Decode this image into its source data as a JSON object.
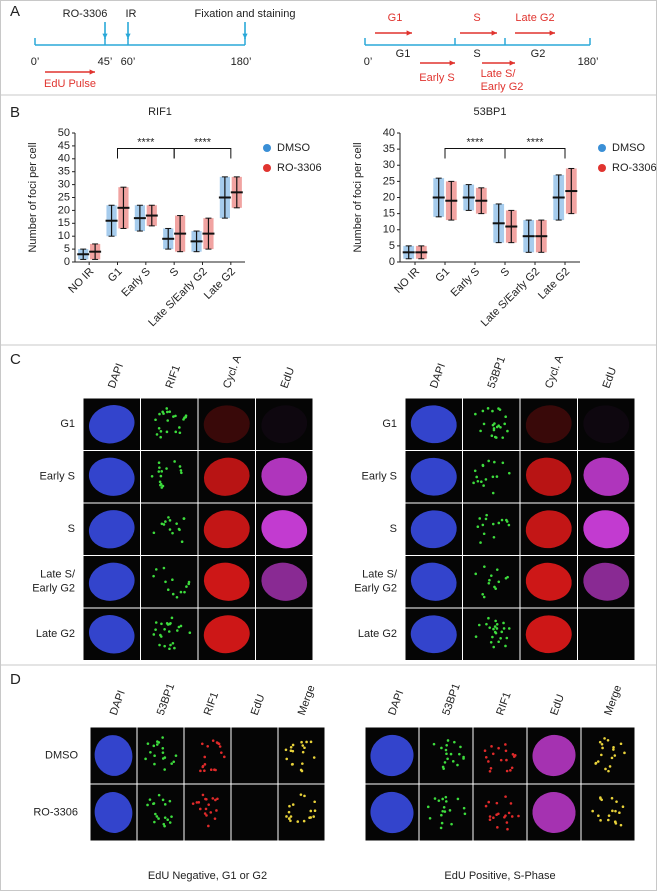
{
  "panel_labels": [
    "A",
    "B",
    "C",
    "D"
  ],
  "panel_a": {
    "timeline": {
      "events": [
        "RO-3306",
        "IR",
        "Fixation and staining"
      ],
      "times": [
        "0’",
        "45’",
        "60’",
        "180’"
      ],
      "pulse": "EdU Pulse"
    },
    "phases": {
      "top": [
        "G1",
        "S",
        "Late G2"
      ],
      "line": [
        "G1",
        "S",
        "G2"
      ],
      "times": [
        "0’",
        "180’"
      ],
      "bottom": [
        [
          "Early S"
        ],
        [
          "Late S/",
          "Early G2"
        ]
      ]
    }
  },
  "chart_data": [
    {
      "type": "errorbar",
      "title": "RIF1",
      "y_label": "Number of foci per cell",
      "categories": [
        "NO IR",
        "G1",
        "Early S",
        "S",
        "Late S/Early G2",
        "Late G2"
      ],
      "ylim": [
        0,
        50
      ],
      "yticks": [
        0,
        5,
        10,
        15,
        20,
        25,
        30,
        35,
        40,
        45,
        50
      ],
      "annotations": [
        "****",
        "****"
      ],
      "series": [
        {
          "name": "DMSO",
          "color": "#3a8fd6",
          "values": [
            3,
            16,
            17,
            9,
            8,
            25
          ],
          "sd": [
            2,
            6,
            5,
            4,
            4,
            8
          ]
        },
        {
          "name": "RO-3306",
          "color": "#e0342f",
          "values": [
            4,
            21,
            18,
            11,
            11,
            27
          ],
          "sd": [
            3,
            8,
            4,
            7,
            6,
            6
          ]
        }
      ]
    },
    {
      "type": "errorbar",
      "title": "53BP1",
      "y_label": "Number of foci per cell",
      "categories": [
        "NO IR",
        "G1",
        "Early S",
        "S",
        "Late S/Early G2",
        "Late G2"
      ],
      "ylim": [
        0,
        40
      ],
      "yticks": [
        0,
        5,
        10,
        15,
        20,
        25,
        30,
        35,
        40
      ],
      "annotations": [
        "****",
        "****"
      ],
      "series": [
        {
          "name": "DMSO",
          "color": "#3a8fd6",
          "values": [
            3,
            20,
            20,
            12,
            8,
            20
          ],
          "sd": [
            2,
            6,
            4,
            6,
            5,
            7
          ]
        },
        {
          "name": "RO-3306",
          "color": "#e0342f",
          "values": [
            3,
            19,
            19,
            11,
            8,
            22
          ],
          "sd": [
            2,
            6,
            4,
            5,
            5,
            7
          ]
        }
      ]
    }
  ],
  "panel_c": {
    "left": {
      "columns": [
        "DAPI",
        "RIF1",
        "Cycl. A",
        "EdU"
      ],
      "rows": [
        [
          "G1"
        ],
        [
          "Early S"
        ],
        [
          "S"
        ],
        [
          "Late S/",
          "Early G2"
        ],
        [
          "Late G2"
        ]
      ]
    },
    "right": {
      "columns": [
        "DAPI",
        "53BP1",
        "Cycl. A",
        "EdU"
      ],
      "rows": [
        [
          "G1"
        ],
        [
          "Early S"
        ],
        [
          "S"
        ],
        [
          "Late S/",
          "Early G2"
        ],
        [
          "Late G2"
        ]
      ]
    }
  },
  "panel_d": {
    "columns": [
      "DAPI",
      "53BP1",
      "RIF1",
      "EdU",
      "Merge"
    ],
    "rows": [
      "DMSO",
      "RO-3306"
    ],
    "captions": [
      "EdU Negative, G1 or G2",
      "EdU Positive, S-Phase"
    ]
  }
}
